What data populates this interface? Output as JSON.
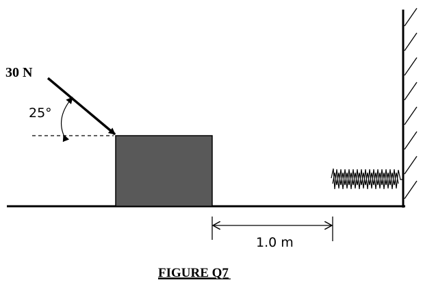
{
  "figure": {
    "force_label": "30 N",
    "angle_label": "25°",
    "distance_label": "1.0 m",
    "caption": "FIGURE Q7"
  },
  "colors": {
    "block": "#595959",
    "line": "#000000"
  }
}
